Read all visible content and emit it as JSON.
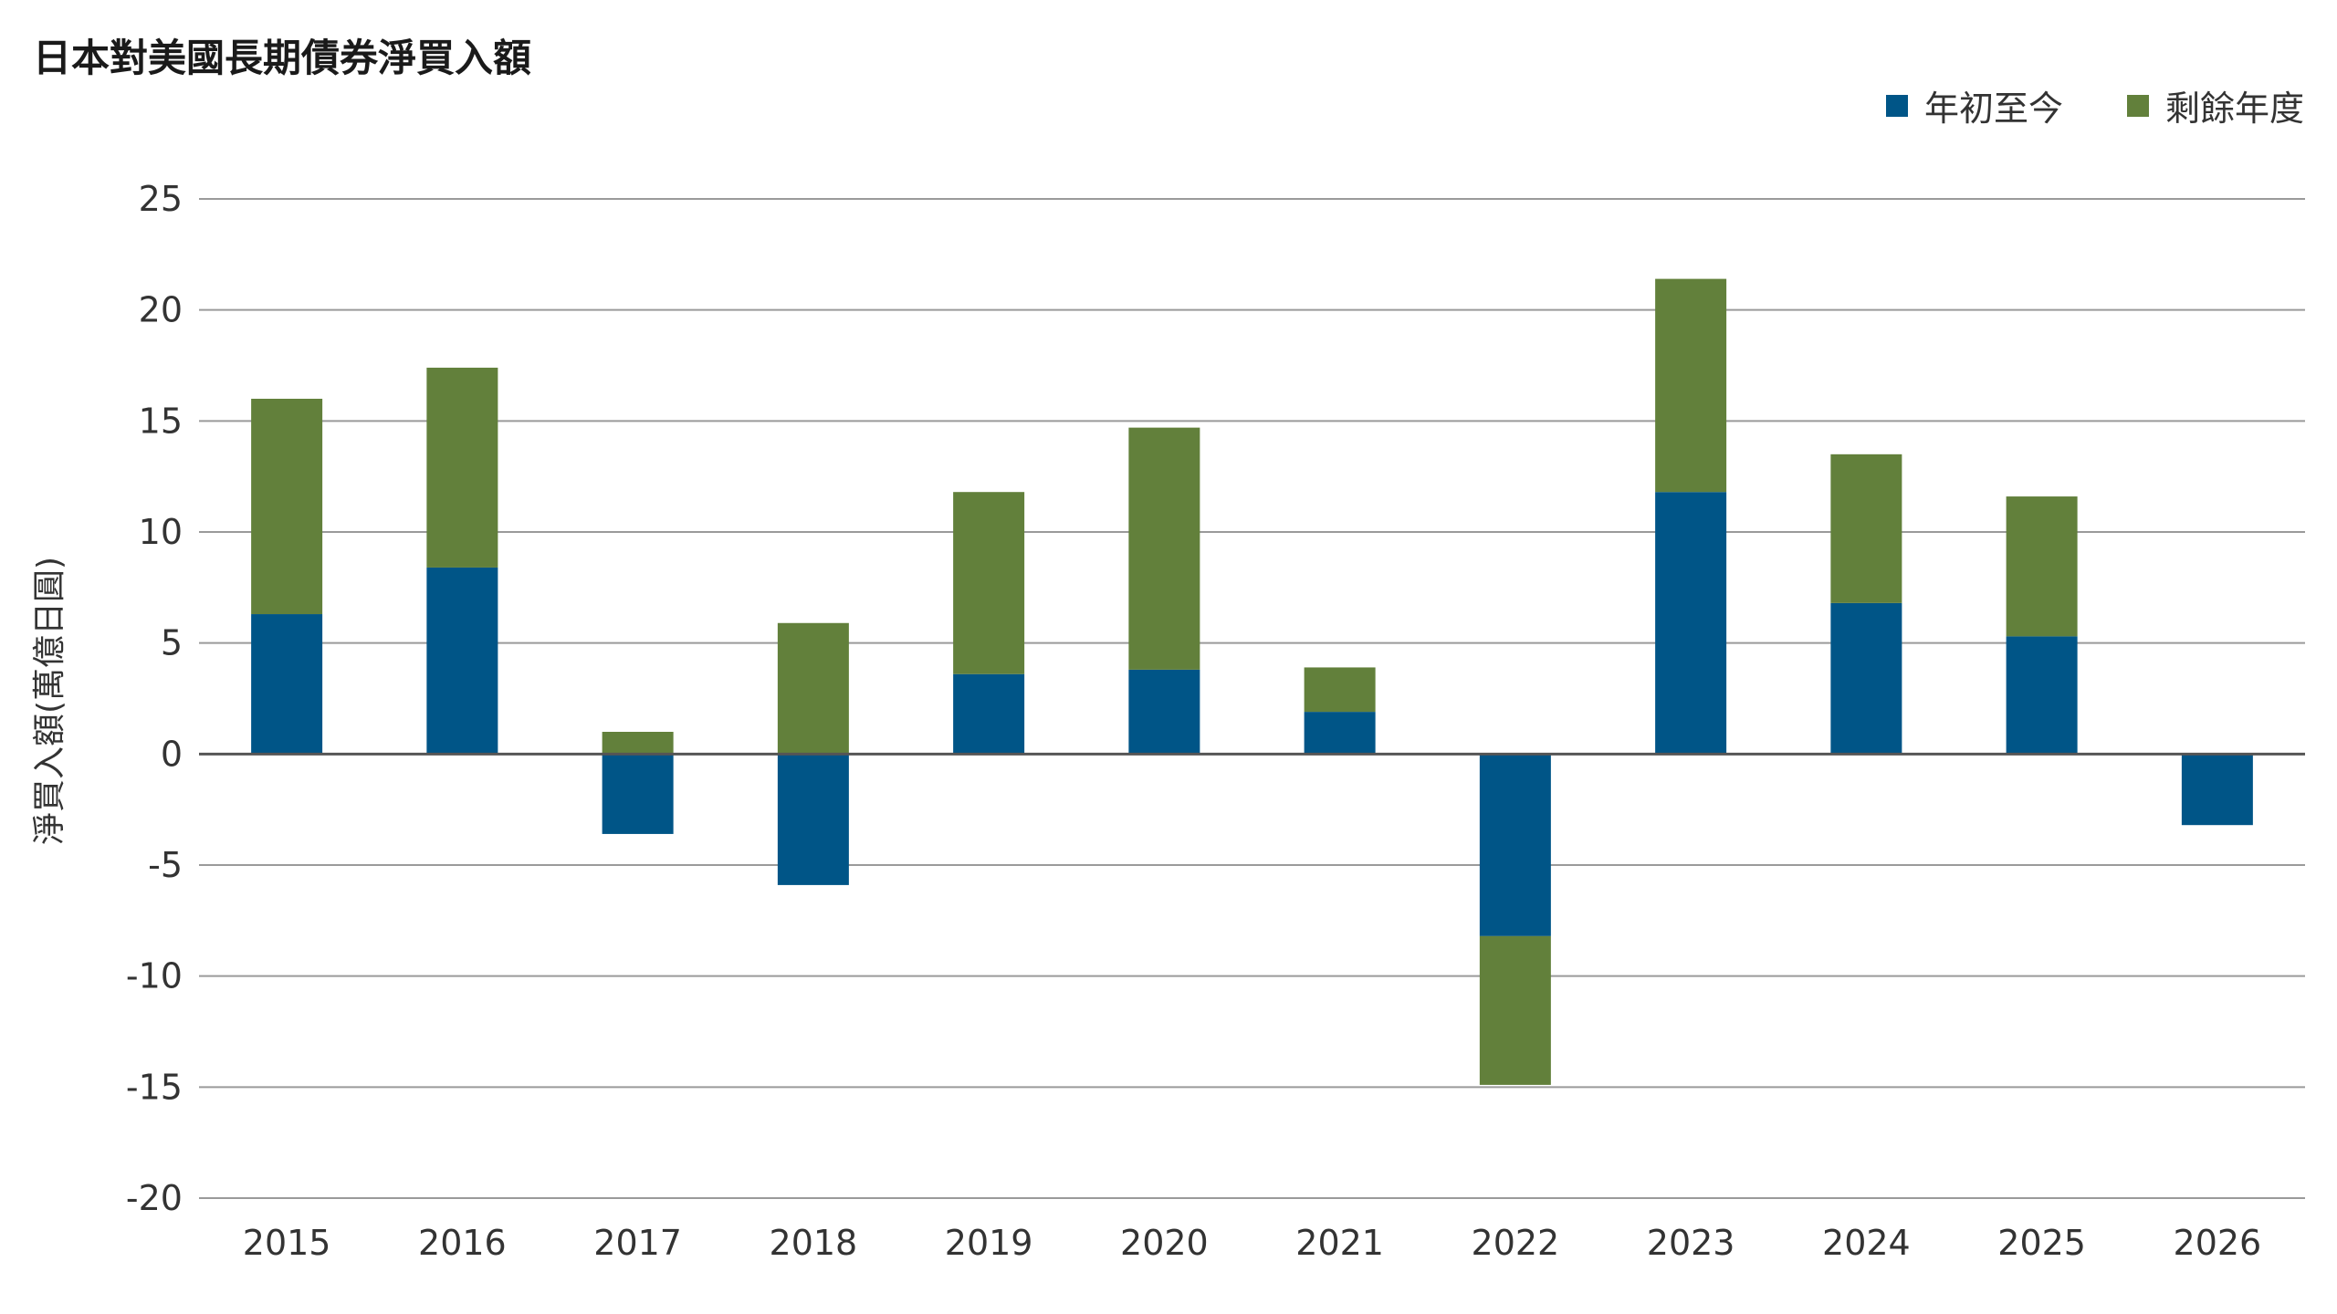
{
  "chart_data": {
    "type": "bar",
    "stacked": true,
    "title": "日本對美國長期債券淨買入額",
    "ylabel": "淨買入額(萬億日圓)",
    "xlabel": "",
    "categories": [
      "2015",
      "2016",
      "2017",
      "2018",
      "2019",
      "2020",
      "2021",
      "2022",
      "2023",
      "2024",
      "2025",
      "2026"
    ],
    "ylim": [
      -20,
      25
    ],
    "yticks": [
      "25",
      "20",
      "15",
      "10",
      "5",
      "0",
      "-5",
      "-10",
      "-15",
      "-20"
    ],
    "grid": true,
    "legend_position": "top-right",
    "series": [
      {
        "name": "年初至今",
        "color": "#005587",
        "values": [
          6.3,
          8.4,
          -3.6,
          -5.9,
          3.6,
          3.8,
          1.9,
          -8.2,
          11.8,
          6.8,
          5.3,
          -3.2
        ]
      },
      {
        "name": "剩餘年度",
        "color": "#62803b",
        "values": [
          9.7,
          9.0,
          1.0,
          5.9,
          8.2,
          10.9,
          2.0,
          -6.7,
          9.6,
          6.7,
          6.3,
          0
        ]
      }
    ]
  }
}
